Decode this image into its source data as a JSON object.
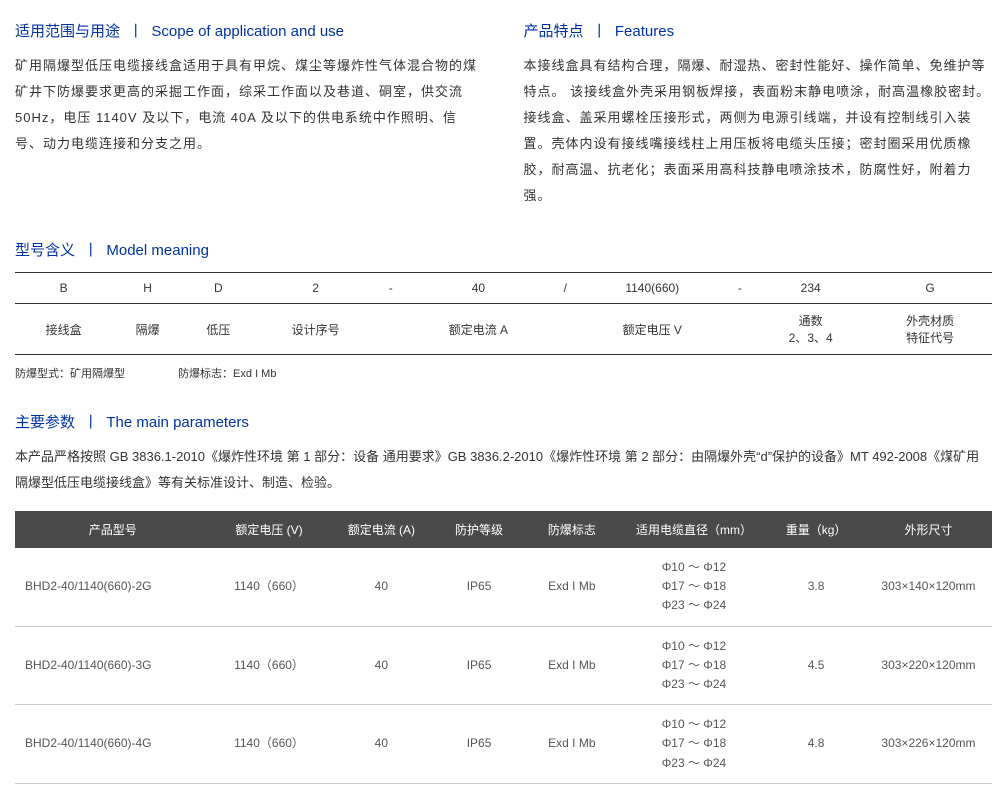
{
  "scope": {
    "title_cn": "适用范围与用途",
    "title_en": "Scope of application and use",
    "body": "矿用隔爆型低压电缆接线盒适用于具有甲烷、煤尘等爆炸性气体混合物的煤矿井下防爆要求更高的采掘工作面，综采工作面以及巷道、硐室，供交流 50Hz，电压 1140V 及以下，电流 40A 及以下的供电系统中作照明、信号、动力电缆连接和分支之用。"
  },
  "features": {
    "title_cn": "产品特点",
    "title_en": "Features",
    "body": "本接线盒具有结构合理，隔爆、耐湿热、密封性能好、操作简单、免维护等特点。\n该接线盒外壳采用钢板焊接，表面粉末静电喷涂，耐高温橡胶密封。接线盒、盖采用螺栓压接形式，两侧为电源引线端，并设有控制线引入装置。壳体内设有接线嘴接线柱上用压板将电缆头压接；密封圈采用优质橡胶，耐高温、抗老化；表面采用高科技静电喷涂技术，防腐性好，附着力强。"
  },
  "model": {
    "title_cn": "型号含义",
    "title_en": "Model meaning",
    "row1": [
      "B",
      "H",
      "D",
      "2",
      "-",
      "40",
      "/",
      "1140(660)",
      "-",
      "234",
      "G"
    ],
    "row2": [
      "接线盒",
      "隔爆",
      "低压",
      "设计序号",
      "",
      "额定电流 A",
      "",
      "额定电压 V",
      "",
      "通数\n2、3、4",
      "外壳材质\n特征代号"
    ],
    "note1": "防爆型式：矿用隔爆型",
    "note2": "防爆标志：Exd I Mb"
  },
  "params": {
    "title_cn": "主要参数",
    "title_en": "The main parameters",
    "intro": "本产品严格按照 GB 3836.1-2010《爆炸性环境 第 1 部分：设备 通用要求》GB 3836.2-2010《爆炸性环境 第 2 部分：由隔爆外壳“d”保护的设备》MT 492-2008《煤矿用隔爆型低压电缆接线盒》等有关标准设计、制造、检验。",
    "headers": [
      "产品型号",
      "额定电压 (V)",
      "额定电流 (A)",
      "防护等级",
      "防爆标志",
      "适用电缆直径（mm）",
      "重量（kg）",
      "外形尺寸"
    ],
    "rows": [
      [
        "BHD2-40/1140(660)-2G",
        "1140（660）",
        "40",
        "IP65",
        "Exd I Mb",
        "Φ10 ～ Φ12\nΦ17 ～ Φ18\nΦ23 ～ Φ24",
        "3.8",
        "303×140×120mm"
      ],
      [
        "BHD2-40/1140(660)-3G",
        "1140（660）",
        "40",
        "IP65",
        "Exd I Mb",
        "Φ10 ～ Φ12\nΦ17 ～ Φ18\nΦ23 ～ Φ24",
        "4.5",
        "303×220×120mm"
      ],
      [
        "BHD2-40/1140(660)-4G",
        "1140（660）",
        "40",
        "IP65",
        "Exd I Mb",
        "Φ10 ～ Φ12\nΦ17 ～ Φ18\nΦ23 ～ Φ24",
        "4.8",
        "303×226×120mm"
      ]
    ],
    "col_widths": [
      "20%",
      "12%",
      "11%",
      "9%",
      "10%",
      "15%",
      "10%",
      "13%"
    ]
  },
  "colors": {
    "heading": "#0033a0",
    "table_header_bg": "#4a4a4a",
    "table_header_fg": "#ffffff",
    "border": "#333333",
    "row_border": "#cccccc"
  }
}
